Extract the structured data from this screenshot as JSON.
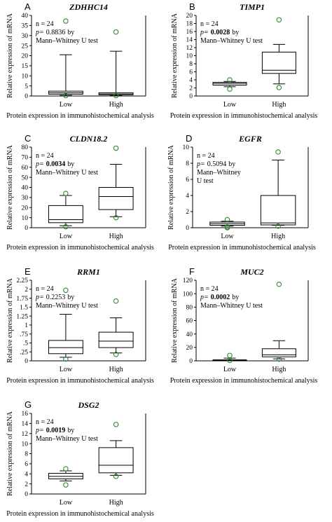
{
  "colors": {
    "outlier": "#2e8b2e",
    "box": "#000000",
    "axis": "#000000"
  },
  "chart_data": [
    {
      "type": "box",
      "panel": "A",
      "title": "ZDHHC14",
      "ylabel": "Relative expression of mRNA",
      "xlabel": "Protein expression in immunohistochemical analysis",
      "ylim": [
        0,
        40
      ],
      "yticks": [
        0,
        5,
        10,
        15,
        20,
        25,
        30,
        35,
        40
      ],
      "yticklabels": [
        "0",
        "5",
        "10",
        "15",
        "20",
        "25",
        "30",
        "35",
        "40"
      ],
      "stats": {
        "n": "n = 24",
        "p_prefix": "p=",
        "p_value": "0.8836",
        "p_bold": false,
        "test_lines": [
          "by",
          "Mann–Whitney U test"
        ]
      },
      "categories": [
        "Low",
        "High"
      ],
      "boxes": [
        {
          "category": "Low",
          "whisker_low": 0.3,
          "q1": 0.9,
          "median": 1.6,
          "q3": 2.4,
          "whisker_high": 20.5,
          "outliers": [
            0.2,
            37.2
          ]
        },
        {
          "category": "High",
          "whisker_low": 0.2,
          "q1": 0.6,
          "median": 1.0,
          "q3": 1.6,
          "whisker_high": 22.2,
          "outliers": [
            0.2,
            31.8
          ]
        }
      ]
    },
    {
      "type": "box",
      "panel": "B",
      "title": "TIMP1",
      "ylabel": "Relative expression of mRNA",
      "xlabel": "Protein expression in immunohistochemical analysis",
      "ylim": [
        0,
        20
      ],
      "yticks": [
        0,
        2,
        4,
        6,
        8,
        10,
        12,
        14,
        16,
        18,
        20
      ],
      "yticklabels": [
        "0",
        "2",
        "4",
        "6",
        "8",
        "10",
        "12",
        "14",
        "16",
        "18",
        "20"
      ],
      "stats": {
        "n": "n = 24",
        "p_prefix": "p=",
        "p_value": "0.0028",
        "p_bold": true,
        "test_lines": [
          "by",
          "Mann–Whitney U test"
        ]
      },
      "categories": [
        "Low",
        "High"
      ],
      "boxes": [
        {
          "category": "Low",
          "whisker_low": 2.3,
          "q1": 2.7,
          "median": 3.1,
          "q3": 3.4,
          "whisker_high": 3.6,
          "outliers": [
            1.7,
            4.0
          ]
        },
        {
          "category": "High",
          "whisker_low": 3.0,
          "q1": 5.6,
          "median": 6.4,
          "q3": 10.9,
          "whisker_high": 12.8,
          "outliers": [
            2.1,
            18.9
          ]
        }
      ]
    },
    {
      "type": "box",
      "panel": "C",
      "title": "CLDN18.2",
      "ylabel": "Relative expression of mRNA",
      "xlabel": "Protein expression in immunohistochemical analysis",
      "ylim": [
        0,
        80
      ],
      "yticks": [
        0,
        10,
        20,
        30,
        40,
        50,
        60,
        70,
        80
      ],
      "yticklabels": [
        "0",
        "10",
        "20",
        "30",
        "40",
        "50",
        "60",
        "70",
        "80"
      ],
      "stats": {
        "n": "n = 24",
        "p_prefix": "p=",
        "p_value": "0.0034",
        "p_bold": true,
        "test_lines": [
          "by",
          "Mann–Whitney U test"
        ]
      },
      "categories": [
        "Low",
        "High"
      ],
      "boxes": [
        {
          "category": "Low",
          "whisker_low": 2.0,
          "q1": 5.0,
          "median": 8.0,
          "q3": 22.0,
          "whisker_high": 32.0,
          "outliers": [
            1.0,
            34.0
          ]
        },
        {
          "category": "High",
          "whisker_low": 11.0,
          "q1": 18.0,
          "median": 31.0,
          "q3": 40.0,
          "whisker_high": 63.0,
          "outliers": [
            10.0,
            79.0
          ]
        }
      ]
    },
    {
      "type": "box",
      "panel": "D",
      "title": "EGFR",
      "ylabel": "Relative expression of mRNA",
      "xlabel": "Protein expression in immunohistochemical analysis",
      "ylim": [
        0,
        10
      ],
      "yticks": [
        0,
        2,
        4,
        6,
        8,
        10
      ],
      "yticklabels": [
        "0",
        "2",
        "4",
        "6",
        "8",
        "10"
      ],
      "stats": {
        "n": "n = 24",
        "p_prefix": "p=",
        "p_value": "0.5094",
        "p_bold": false,
        "test_lines": [
          "by",
          "Mann–Whitney",
          "U test"
        ]
      },
      "categories": [
        "Low",
        "High"
      ],
      "boxes": [
        {
          "category": "Low",
          "whisker_low": 0.2,
          "q1": 0.3,
          "median": 0.5,
          "q3": 0.7,
          "whisker_high": 0.8,
          "outliers": [
            0.0,
            0.1,
            1.0
          ]
        },
        {
          "category": "High",
          "whisker_low": 0.3,
          "q1": 0.35,
          "median": 0.6,
          "q3": 4.0,
          "whisker_high": 8.4,
          "outliers": [
            0.2,
            9.4
          ]
        }
      ]
    },
    {
      "type": "box",
      "panel": "E",
      "title": "RRM1",
      "ylabel": "Relative expression of mRNA",
      "xlabel": "Protein expression in immunohistochemical analysis",
      "ylim": [
        0,
        2.25
      ],
      "yticks": [
        0,
        0.25,
        0.5,
        0.75,
        1,
        1.25,
        1.5,
        1.75,
        2,
        2.25
      ],
      "yticklabels": [
        "0",
        ".25",
        ".5",
        ".75",
        "1",
        "1.25",
        "1.5",
        "1.75",
        "2",
        "2.25"
      ],
      "stats": {
        "n": "n = 24",
        "p_prefix": "p=",
        "p_value": "0.2253",
        "p_bold": false,
        "test_lines": [
          "by",
          "Mann–Whitney U test"
        ]
      },
      "categories": [
        "Low",
        "High"
      ],
      "boxes": [
        {
          "category": "Low",
          "whisker_low": 0.1,
          "q1": 0.2,
          "median": 0.37,
          "q3": 0.57,
          "whisker_high": 1.3,
          "outliers": [
            0.05,
            1.97
          ]
        },
        {
          "category": "High",
          "whisker_low": 0.22,
          "q1": 0.37,
          "median": 0.55,
          "q3": 0.8,
          "whisker_high": 1.2,
          "outliers": [
            0.18,
            1.67
          ]
        }
      ]
    },
    {
      "type": "box",
      "panel": "F",
      "title": "MUC2",
      "ylabel": "Relative expression of mRNA",
      "xlabel": "Protein expression in immunohistochemical analysis",
      "ylim": [
        0,
        120
      ],
      "yticks": [
        0,
        20,
        40,
        60,
        80,
        100,
        120
      ],
      "yticklabels": [
        "0",
        "20",
        "40",
        "60",
        "80",
        "100",
        "120"
      ],
      "stats": {
        "n": "n = 24",
        "p_prefix": "p=",
        "p_value": "0.0002",
        "p_bold": true,
        "test_lines": [
          "by",
          "Mann–Whitney U test"
        ]
      },
      "categories": [
        "Low",
        "High"
      ],
      "boxes": [
        {
          "category": "Low",
          "whisker_low": 0.5,
          "q1": 0.8,
          "median": 1.0,
          "q3": 1.5,
          "whisker_high": 4.0,
          "outliers": [
            0.5,
            8.0
          ]
        },
        {
          "category": "High",
          "whisker_low": 3.0,
          "q1": 6.0,
          "median": 9.0,
          "q3": 18.0,
          "whisker_high": 30.0,
          "outliers": [
            2.5,
            114.0
          ]
        }
      ]
    },
    {
      "type": "box",
      "panel": "G",
      "title": "DSG2",
      "ylabel": "Relative expression of mRNA",
      "xlabel": "Protein expression in immunohistochemical analysis",
      "ylim": [
        0,
        16
      ],
      "yticks": [
        0,
        2,
        4,
        6,
        8,
        10,
        12,
        14,
        16
      ],
      "yticklabels": [
        "0",
        "2",
        "4",
        "6",
        "8",
        "10",
        "12",
        "14",
        "16"
      ],
      "stats": {
        "n": "n = 24",
        "p_prefix": "p=",
        "p_value": "0.0019",
        "p_bold": true,
        "test_lines": [
          "by",
          "Mann–Whitney U test"
        ]
      },
      "categories": [
        "Low",
        "High"
      ],
      "boxes": [
        {
          "category": "Low",
          "whisker_low": 2.6,
          "q1": 3.0,
          "median": 3.5,
          "q3": 4.1,
          "whisker_high": 4.6,
          "outliers": [
            1.8,
            5.0
          ]
        },
        {
          "category": "High",
          "whisker_low": 3.7,
          "q1": 4.2,
          "median": 5.7,
          "q3": 9.2,
          "whisker_high": 10.6,
          "outliers": [
            3.5,
            13.8
          ]
        }
      ]
    }
  ]
}
